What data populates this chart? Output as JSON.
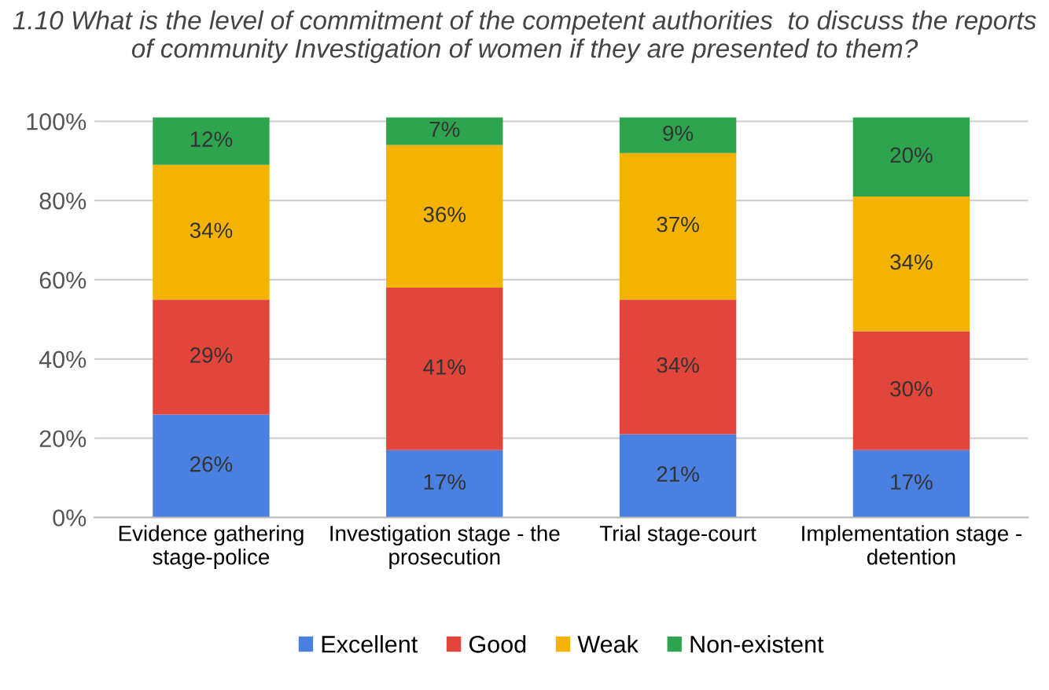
{
  "chart_data": {
    "type": "bar",
    "stacked": true,
    "title": "1.10 What is the level of commitment of the competent authorities  to discuss the reports of community Investigation of women if they are presented to them?",
    "categories": [
      "Evidence gathering stage-police",
      "Investigation stage - the prosecution",
      "Trial stage-court",
      "Implementation stage - detention"
    ],
    "series": [
      {
        "name": "Excellent",
        "color": "#4a80e0",
        "values": [
          26,
          17,
          21,
          17
        ],
        "value_labels": [
          "26%",
          "17%",
          "21%",
          "17%"
        ]
      },
      {
        "name": "Good",
        "color": "#e2453a",
        "values": [
          29,
          41,
          34,
          30
        ],
        "value_labels": [
          "29%",
          "41%",
          "34%",
          "30%"
        ]
      },
      {
        "name": "Weak",
        "color": "#f5b301",
        "values": [
          34,
          36,
          37,
          34
        ],
        "value_labels": [
          "34%",
          "36%",
          "37%",
          "34%"
        ]
      },
      {
        "name": "Non-existent",
        "color": "#2fa44f",
        "values": [
          12,
          7,
          9,
          20
        ],
        "value_labels": [
          "12%",
          "7%",
          "9%",
          "20%"
        ]
      }
    ],
    "ylim": [
      0,
      101
    ],
    "yticks": [
      {
        "value": 0,
        "label": "0%"
      },
      {
        "value": 20,
        "label": "20%"
      },
      {
        "value": 40,
        "label": "40%"
      },
      {
        "value": 60,
        "label": "60%"
      },
      {
        "value": 80,
        "label": "80%"
      },
      {
        "value": 100,
        "label": "100%"
      }
    ],
    "grid": "y",
    "legend": "bottom"
  }
}
